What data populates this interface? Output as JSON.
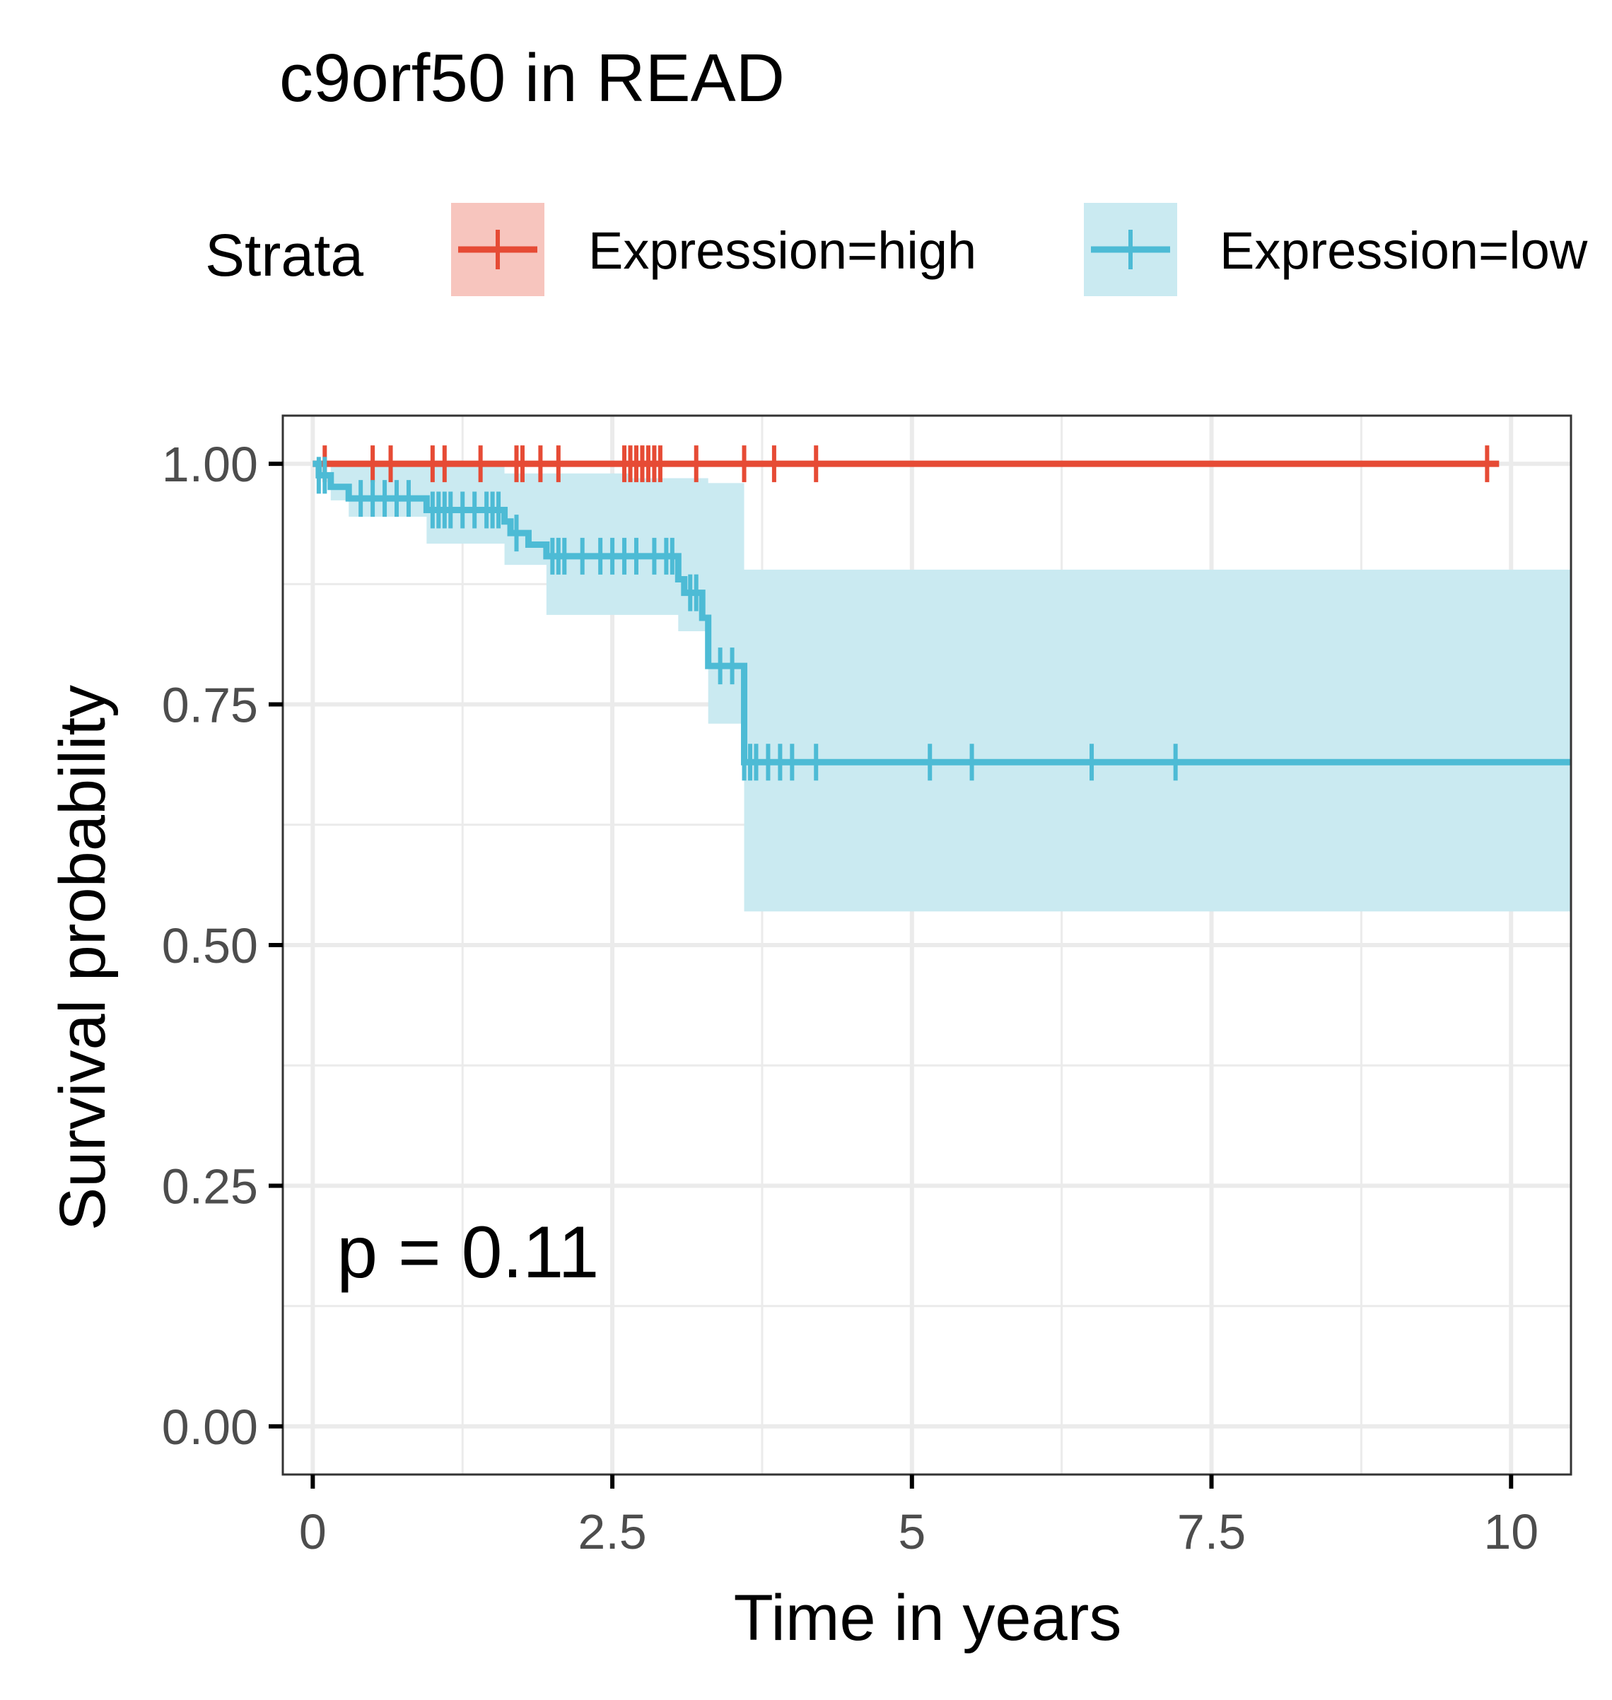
{
  "chart_data": {
    "type": "line",
    "subtype": "kaplan-meier survival curve",
    "title": "c9orf50 in READ",
    "xlabel": "Time in years",
    "ylabel": "Survival probability",
    "xlim": [
      -0.25,
      10.5
    ],
    "ylim": [
      -0.05,
      1.05
    ],
    "x_ticks": [
      0,
      2.5,
      5,
      7.5,
      10
    ],
    "x_tick_labels": [
      "0",
      "2.5",
      "5",
      "7.5",
      "10"
    ],
    "y_ticks": [
      0,
      0.25,
      0.5,
      0.75,
      1.0
    ],
    "y_tick_labels": [
      "0.00",
      "0.25",
      "0.50",
      "0.75",
      "1.00"
    ],
    "grid": true,
    "legend": {
      "title": "Strata",
      "position": "top",
      "entries": [
        "Expression=high",
        "Expression=low"
      ]
    },
    "annotation": "p = 0.11",
    "series": [
      {
        "name": "Expression=high",
        "color": "#E64B35",
        "fill": "#F7C5BE",
        "steps": [
          [
            0,
            1.0
          ],
          [
            9.9,
            1.0
          ]
        ],
        "ci_lower": [
          [
            0,
            1.0
          ],
          [
            9.9,
            1.0
          ]
        ],
        "ci_upper": [
          [
            0,
            1.0
          ],
          [
            9.9,
            1.0
          ]
        ],
        "censor_times": [
          0.1,
          0.5,
          0.65,
          1.0,
          1.1,
          1.4,
          1.7,
          1.75,
          1.9,
          2.05,
          2.6,
          2.65,
          2.7,
          2.75,
          2.8,
          2.85,
          2.9,
          3.2,
          3.6,
          3.85,
          4.2,
          9.8
        ]
      },
      {
        "name": "Expression=low",
        "color": "#4DBBD5",
        "fill": "#CAEAF1",
        "steps": [
          [
            0,
            1.0
          ],
          [
            0.05,
            0.988
          ],
          [
            0.15,
            0.976
          ],
          [
            0.3,
            0.964
          ],
          [
            0.95,
            0.952
          ],
          [
            1.6,
            0.94
          ],
          [
            1.65,
            0.928
          ],
          [
            1.8,
            0.916
          ],
          [
            1.95,
            0.904
          ],
          [
            3.05,
            0.88
          ],
          [
            3.1,
            0.866
          ],
          [
            3.25,
            0.84
          ],
          [
            3.3,
            0.79
          ],
          [
            3.6,
            0.69
          ],
          [
            10.5,
            0.69
          ]
        ],
        "ci_lower": [
          [
            0,
            1.0
          ],
          [
            0.15,
            0.962
          ],
          [
            0.3,
            0.945
          ],
          [
            0.95,
            0.917
          ],
          [
            1.6,
            0.895
          ],
          [
            1.95,
            0.843
          ],
          [
            3.05,
            0.826
          ],
          [
            3.3,
            0.73
          ],
          [
            3.6,
            0.535
          ],
          [
            10.5,
            0.535
          ]
        ],
        "ci_upper": [
          [
            0,
            1.0
          ],
          [
            0.95,
            1.0
          ],
          [
            1.6,
            0.99
          ],
          [
            2.65,
            0.985
          ],
          [
            3.3,
            0.98
          ],
          [
            3.6,
            0.89
          ],
          [
            10.5,
            0.89
          ]
        ],
        "censor_times": [
          0.05,
          0.1,
          0.4,
          0.5,
          0.6,
          0.7,
          0.8,
          1.0,
          1.05,
          1.1,
          1.15,
          1.25,
          1.35,
          1.45,
          1.5,
          1.55,
          1.7,
          2.0,
          2.05,
          2.1,
          2.25,
          2.4,
          2.5,
          2.6,
          2.7,
          2.85,
          2.95,
          3.0,
          3.15,
          3.2,
          3.4,
          3.5,
          3.6,
          3.65,
          3.7,
          3.8,
          3.9,
          4.0,
          4.2,
          5.15,
          5.5,
          6.5,
          7.2
        ]
      }
    ]
  }
}
